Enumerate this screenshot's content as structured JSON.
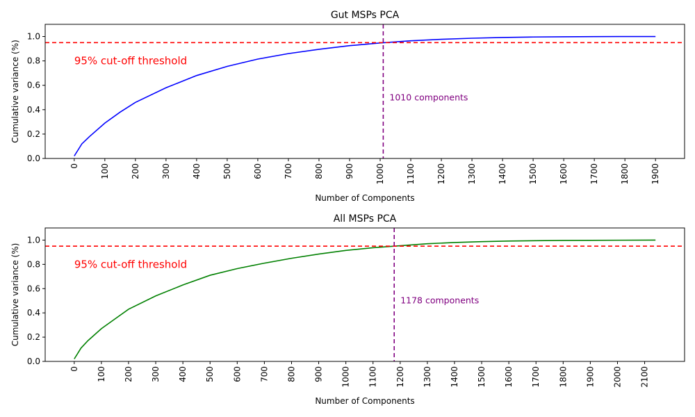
{
  "chart_data": [
    {
      "type": "line",
      "title": "Gut MSPs PCA",
      "xlabel": "Number of Components",
      "ylabel": "Cumulative variance (%)",
      "xlim": [
        -95,
        1995
      ],
      "ylim": [
        0,
        1.1
      ],
      "xticks": [
        0,
        100,
        200,
        300,
        400,
        500,
        600,
        700,
        800,
        900,
        1000,
        1100,
        1200,
        1300,
        1400,
        1500,
        1600,
        1700,
        1800,
        1900
      ],
      "yticks": [
        0.0,
        0.2,
        0.4,
        0.6,
        0.8,
        1.0
      ],
      "ytick_labels": [
        "0.0",
        "0.2",
        "0.4",
        "0.6",
        "0.8",
        "1.0"
      ],
      "series": [
        {
          "color": "#0000ff",
          "x": [
            0,
            25,
            50,
            100,
            150,
            200,
            300,
            400,
            500,
            600,
            700,
            800,
            900,
            1000,
            1100,
            1200,
            1300,
            1400,
            1500,
            1600,
            1700,
            1800,
            1900
          ],
          "y": [
            0.02,
            0.12,
            0.18,
            0.29,
            0.38,
            0.46,
            0.58,
            0.68,
            0.755,
            0.815,
            0.86,
            0.895,
            0.925,
            0.947,
            0.965,
            0.977,
            0.986,
            0.992,
            0.996,
            0.998,
            0.999,
            1.0,
            1.0
          ]
        }
      ],
      "threshold": {
        "y": 0.95,
        "color": "#ff0000",
        "label": "95% cut-off threshold"
      },
      "cutoff": {
        "x": 1010,
        "color": "#800080",
        "label": "1010 components"
      }
    },
    {
      "type": "line",
      "title": "All MSPs PCA",
      "xlabel": "Number of Components",
      "ylabel": "Cumulative variance (%)",
      "xlim": [
        -107,
        2247
      ],
      "ylim": [
        0,
        1.1
      ],
      "xticks": [
        0,
        100,
        200,
        300,
        400,
        500,
        600,
        700,
        800,
        900,
        1000,
        1100,
        1200,
        1300,
        1400,
        1500,
        1600,
        1700,
        1800,
        1900,
        2000,
        2100
      ],
      "yticks": [
        0.0,
        0.2,
        0.4,
        0.6,
        0.8,
        1.0
      ],
      "ytick_labels": [
        "0.0",
        "0.2",
        "0.4",
        "0.6",
        "0.8",
        "1.0"
      ],
      "series": [
        {
          "color": "#008000",
          "x": [
            0,
            25,
            50,
            100,
            150,
            200,
            300,
            400,
            500,
            600,
            700,
            800,
            900,
            1000,
            1100,
            1178,
            1300,
            1400,
            1500,
            1600,
            1700,
            1800,
            1900,
            2000,
            2140
          ],
          "y": [
            0.02,
            0.11,
            0.17,
            0.27,
            0.35,
            0.43,
            0.54,
            0.63,
            0.71,
            0.765,
            0.81,
            0.85,
            0.885,
            0.915,
            0.937,
            0.95,
            0.97,
            0.98,
            0.987,
            0.992,
            0.995,
            0.997,
            0.998,
            0.999,
            1.0
          ]
        }
      ],
      "threshold": {
        "y": 0.95,
        "color": "#ff0000",
        "label": "95% cut-off threshold"
      },
      "cutoff": {
        "x": 1178,
        "color": "#800080",
        "label": "1178 components"
      }
    }
  ]
}
